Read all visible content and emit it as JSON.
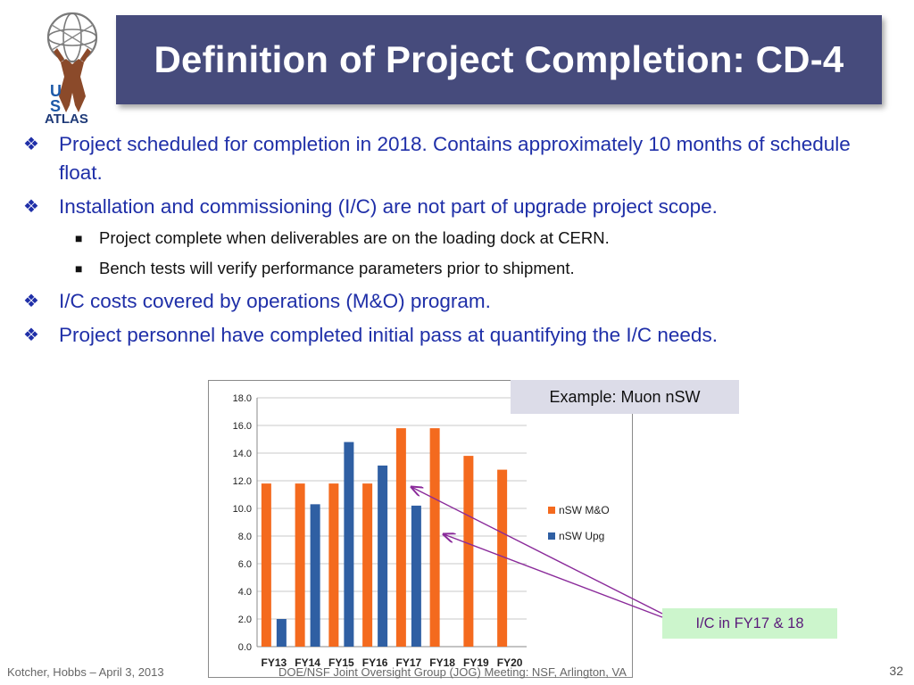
{
  "logo": {
    "text_u": "U",
    "text_s": "S",
    "text_atlas": "ATLAS"
  },
  "title": "Definition of Project Completion: CD-4",
  "bullets": [
    {
      "text": "Project scheduled for completion in 2018.  Contains approximately 10 months of schedule float."
    },
    {
      "text": "Installation and commissioning (I/C) are not part of upgrade project scope."
    },
    {
      "text": "Project complete when deliverables are on the loading dock at CERN."
    },
    {
      "text": "Bench tests will verify performance parameters prior to shipment."
    },
    {
      "text": "I/C costs covered by operations (M&O) program."
    },
    {
      "text": "Project personnel have completed initial pass at quantifying the I/C needs."
    }
  ],
  "example_label": "Example:  Muon nSW",
  "ic_label": "I/C in FY17 & 18",
  "footer": {
    "left": "Kotcher, Hobbs – April 3, 2013",
    "center": "DOE/NSF Joint Oversight Group (JOG) Meeting: NSF, Arlington, VA",
    "page": "32"
  },
  "colors": {
    "title_bg": "#464b7c",
    "mo": "#f46a1e",
    "upg": "#2f5fa3",
    "bullet_text": "#1f2fa8"
  },
  "chart_data": {
    "type": "bar",
    "categories": [
      "FY13",
      "FY14",
      "FY15",
      "FY16",
      "FY17",
      "FY18",
      "FY19",
      "FY20"
    ],
    "series": [
      {
        "name": "nSW M&O",
        "values": [
          11.8,
          11.8,
          11.8,
          11.8,
          15.8,
          15.8,
          13.8,
          12.8
        ]
      },
      {
        "name": "nSW Upg",
        "values": [
          2.0,
          10.3,
          14.8,
          13.1,
          10.2,
          null,
          null,
          null
        ]
      }
    ],
    "ylim": [
      0,
      18
    ],
    "yticks": [
      "0.0",
      "2.0",
      "4.0",
      "6.0",
      "8.0",
      "10.0",
      "12.0",
      "14.0",
      "16.0",
      "18.0"
    ],
    "grid": true,
    "legend": "right"
  }
}
